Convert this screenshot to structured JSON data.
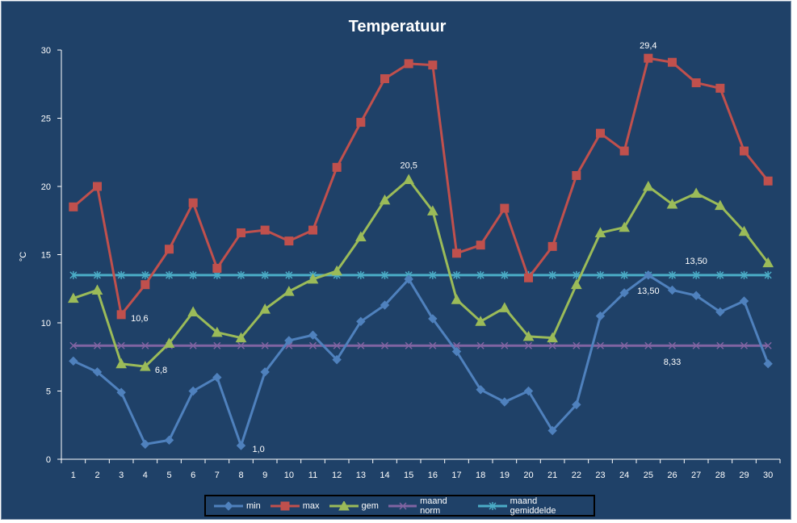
{
  "chart_data": {
    "type": "line",
    "title": "Temperatuur",
    "ylabel": "°C",
    "xlabel": "",
    "ylim": [
      0,
      30
    ],
    "yticks": [
      0,
      5,
      10,
      15,
      20,
      25,
      30
    ],
    "categories": [
      "1",
      "2",
      "3",
      "4",
      "5",
      "6",
      "7",
      "8",
      "9",
      "10",
      "11",
      "12",
      "13",
      "14",
      "15",
      "16",
      "17",
      "18",
      "19",
      "20",
      "21",
      "22",
      "23",
      "24",
      "25",
      "26",
      "27",
      "28",
      "29",
      "30"
    ],
    "grid": false,
    "legend": "bottom",
    "series": [
      {
        "name": "min",
        "color": "#4f81bd",
        "marker": "diamond",
        "values": [
          7.2,
          6.4,
          4.9,
          1.1,
          1.4,
          5.0,
          6.0,
          1.0,
          6.4,
          8.7,
          9.1,
          7.3,
          10.1,
          11.3,
          13.2,
          10.3,
          7.9,
          5.1,
          4.2,
          5.0,
          2.1,
          4.0,
          10.5,
          12.2,
          13.5,
          12.4,
          12.0,
          10.8,
          11.6,
          7.0
        ]
      },
      {
        "name": "max",
        "color": "#c0504d",
        "marker": "square",
        "values": [
          18.5,
          20.0,
          10.6,
          12.8,
          15.4,
          18.8,
          14.0,
          16.6,
          16.8,
          16.0,
          16.8,
          21.4,
          24.7,
          27.9,
          29.0,
          28.9,
          15.1,
          15.7,
          18.4,
          13.3,
          15.6,
          20.8,
          23.9,
          22.6,
          29.4,
          29.1,
          27.6,
          27.2,
          22.6,
          20.4
        ]
      },
      {
        "name": "gem",
        "color": "#9bbb59",
        "marker": "triangle",
        "values": [
          11.8,
          12.4,
          7.0,
          6.8,
          8.5,
          10.8,
          9.3,
          8.9,
          11.0,
          12.3,
          13.2,
          13.8,
          16.3,
          19.0,
          20.5,
          18.2,
          11.7,
          10.1,
          11.1,
          9.0,
          8.9,
          12.8,
          16.6,
          17.0,
          20.0,
          18.7,
          19.5,
          18.6,
          16.7,
          14.4
        ]
      },
      {
        "name": "maand norm",
        "color": "#8064a2",
        "marker": "x",
        "values": [
          8.33,
          8.33,
          8.33,
          8.33,
          8.33,
          8.33,
          8.33,
          8.33,
          8.33,
          8.33,
          8.33,
          8.33,
          8.33,
          8.33,
          8.33,
          8.33,
          8.33,
          8.33,
          8.33,
          8.33,
          8.33,
          8.33,
          8.33,
          8.33,
          8.33,
          8.33,
          8.33,
          8.33,
          8.33,
          8.33
        ]
      },
      {
        "name": "maand gemiddelde",
        "color": "#4bacc6",
        "marker": "asterisk",
        "values": [
          13.5,
          13.5,
          13.5,
          13.5,
          13.5,
          13.5,
          13.5,
          13.5,
          13.5,
          13.5,
          13.5,
          13.5,
          13.5,
          13.5,
          13.5,
          13.5,
          13.5,
          13.5,
          13.5,
          13.5,
          13.5,
          13.5,
          13.5,
          13.5,
          13.5,
          13.5,
          13.5,
          13.5,
          13.5,
          13.5
        ]
      }
    ],
    "annotations": [
      {
        "text": "29,4",
        "x": "25",
        "y": 29.4
      },
      {
        "text": "20,5",
        "x": "15",
        "y": 20.5
      },
      {
        "text": "10,6",
        "x": "3",
        "y": 10.6
      },
      {
        "text": "6,8",
        "x": "4",
        "y": 6.8
      },
      {
        "text": "1,0",
        "x": "8",
        "y": 1.0
      },
      {
        "text": "13,50",
        "x": "27",
        "y": 13.5
      },
      {
        "text": "13,50",
        "x": "25",
        "y": 13.5
      },
      {
        "text": "8,33",
        "x": "26",
        "y": 8.33
      }
    ]
  }
}
